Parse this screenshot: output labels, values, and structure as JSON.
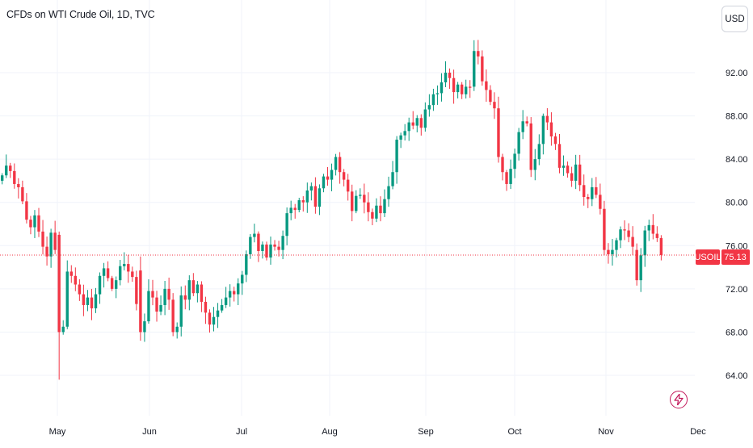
{
  "header": {
    "title": "CFDs on WTI Crude Oil, 1D, TVC",
    "currency_button": "USD"
  },
  "price_badge": {
    "symbol": "USOIL",
    "price": "75.13",
    "color": "#f23645"
  },
  "colors": {
    "up": "#089981",
    "down": "#f23645",
    "grid": "#f0f3fa",
    "text": "#131722",
    "alert_icon": "#c2185b"
  },
  "icons": {
    "alert": "lightning-bolt-icon"
  },
  "chart_data": {
    "type": "candlestick",
    "title": "CFDs on WTI Crude Oil, 1D, TVC",
    "interval": "1D",
    "y_ticks": [
      "64.00",
      "68.00",
      "72.00",
      "76.00",
      "80.00",
      "84.00",
      "88.00",
      "92.00"
    ],
    "x_ticks": [
      "May",
      "Jun",
      "Jul",
      "Aug",
      "Sep",
      "Oct",
      "Nov",
      "Dec"
    ],
    "ylim": [
      61.0,
      96.5
    ],
    "y_axis_position": "right",
    "grid": true,
    "last_price": 75.13,
    "closes": [
      82.5,
      83.4,
      82.9,
      81.7,
      81.4,
      80.1,
      78.4,
      77.7,
      78.8,
      77.3,
      75.9,
      75.0,
      77.2,
      75.6,
      68.0,
      68.5,
      73.6,
      73.2,
      72.4,
      71.5,
      70.5,
      71.2,
      70.2,
      71.5,
      73.2,
      73.9,
      73.0,
      72.0,
      72.8,
      74.1,
      74.3,
      73.6,
      73.1,
      70.6,
      68.0,
      69.0,
      71.8,
      71.2,
      69.9,
      70.5,
      72.0,
      71.0,
      68.0,
      68.5,
      71.4,
      71.0,
      72.8,
      71.6,
      72.4,
      70.8,
      69.8,
      68.7,
      69.4,
      70.0,
      70.5,
      71.2,
      71.8,
      71.5,
      72.5,
      73.3,
      75.2,
      76.8,
      77.1,
      75.5,
      76.1,
      74.9,
      76.1,
      75.9,
      75.6,
      76.9,
      79.0,
      79.5,
      79.3,
      80.2,
      80.0,
      81.1,
      81.5,
      79.6,
      81.3,
      82.4,
      82.1,
      83.0,
      84.2,
      82.8,
      82.1,
      81.0,
      79.2,
      80.6,
      80.7,
      80.0,
      79.1,
      78.5,
      79.7,
      79.0,
      80.3,
      81.5,
      82.8,
      85.8,
      86.2,
      86.6,
      87.4,
      87.1,
      87.8,
      86.9,
      88.6,
      89.0,
      90.0,
      90.1,
      91.1,
      92.0,
      91.5,
      90.2,
      90.9,
      90.0,
      90.7,
      90.6,
      94.0,
      93.5,
      91.2,
      90.4,
      89.3,
      88.7,
      84.2,
      82.8,
      81.7,
      83.1,
      84.5,
      86.5,
      87.5,
      87.3,
      83.0,
      84.0,
      85.4,
      88.0,
      87.4,
      86.1,
      85.4,
      83.2,
      83.4,
      82.7,
      82.0,
      83.5,
      81.6,
      80.5,
      80.3,
      81.4,
      80.7,
      79.4,
      75.6,
      75.2,
      75.6,
      76.5,
      77.5,
      77.4,
      76.8,
      75.9,
      72.8,
      75.1,
      77.4,
      77.9,
      77.1,
      76.7,
      75.13
    ]
  }
}
